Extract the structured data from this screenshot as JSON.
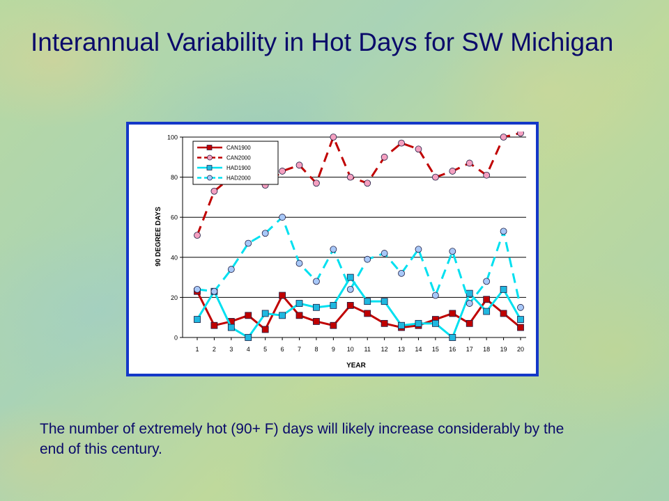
{
  "slide": {
    "title": "Interannual Variability in Hot Days for SW Michigan",
    "caption": "The number of extremely hot (90+ F) days will likely increase considerably by the end of this century."
  },
  "colors": {
    "text": "#0a0a6a",
    "frame": "#1438c8",
    "can_line": "#c00000",
    "can_marker_1900": "#c00000",
    "can_marker_2000": "#f4a0c0",
    "had_line": "#00e0f0",
    "had_marker_1900": "#20b8e0",
    "had_marker_2000": "#a8c8f8"
  },
  "chart_data": {
    "type": "line",
    "xlabel": "YEAR",
    "ylabel": "90 DEGREE DAYS",
    "x": [
      1,
      2,
      3,
      4,
      5,
      6,
      7,
      8,
      9,
      10,
      11,
      12,
      13,
      14,
      15,
      16,
      17,
      18,
      19,
      20
    ],
    "ylim": [
      0,
      100
    ],
    "yticks": [
      0,
      20,
      40,
      60,
      80,
      100
    ],
    "grid": "horizontal",
    "legend_position": "top-left",
    "series": [
      {
        "name": "CAN1900",
        "style": "solid",
        "marker": "square",
        "line_color": "#c00000",
        "marker_color": "#c00000",
        "values": [
          23,
          6,
          8,
          11,
          4,
          21,
          11,
          8,
          6,
          16,
          12,
          7,
          5,
          6,
          9,
          12,
          7,
          19,
          12,
          5
        ]
      },
      {
        "name": "CAN2000",
        "style": "dashed",
        "marker": "circle",
        "line_color": "#c00000",
        "marker_color": "#f4a0c0",
        "values": [
          51,
          73,
          80,
          79,
          76,
          83,
          86,
          77,
          100,
          80,
          77,
          90,
          97,
          94,
          80,
          83,
          87,
          81,
          100,
          102
        ]
      },
      {
        "name": "HAD1900",
        "style": "solid",
        "marker": "square",
        "line_color": "#00e0f0",
        "marker_color": "#20b8e0",
        "values": [
          9,
          23,
          5,
          0,
          12,
          11,
          17,
          15,
          16,
          30,
          18,
          18,
          6,
          7,
          7,
          0,
          22,
          13,
          24,
          9
        ]
      },
      {
        "name": "HAD2000",
        "style": "dashed",
        "marker": "circle",
        "line_color": "#00e0f0",
        "marker_color": "#a8c8f8",
        "values": [
          24,
          23,
          34,
          47,
          52,
          60,
          37,
          28,
          44,
          24,
          39,
          42,
          32,
          44,
          21,
          43,
          17,
          28,
          53,
          15
        ]
      }
    ]
  }
}
